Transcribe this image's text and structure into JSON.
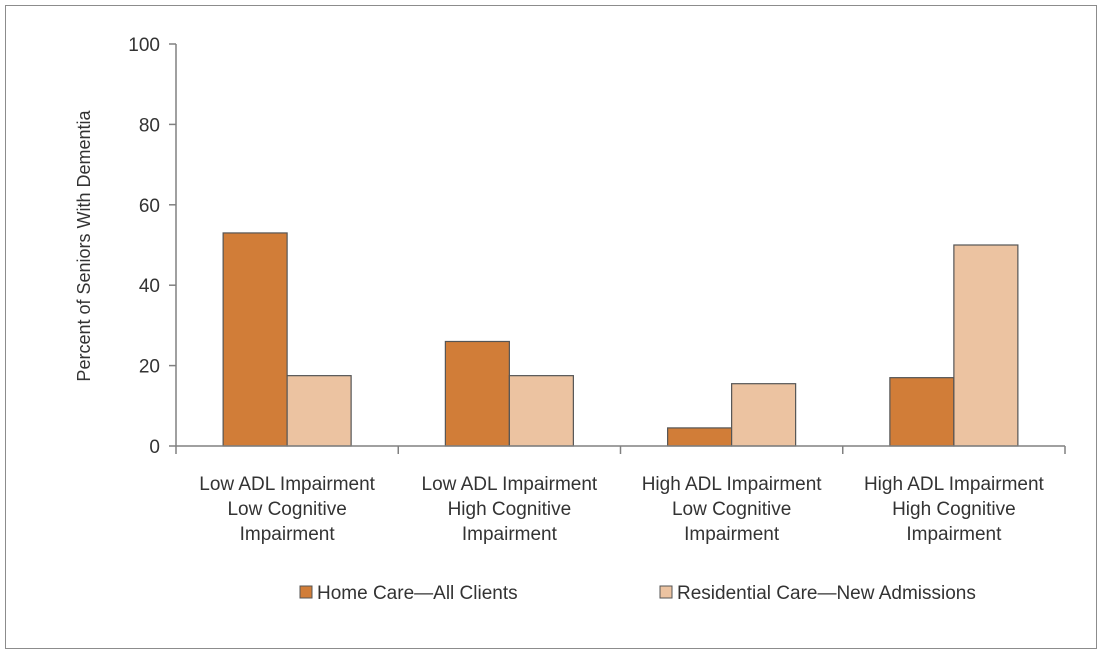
{
  "chart_data": {
    "type": "bar",
    "title": "",
    "xlabel": "",
    "ylabel": "Percent of Seniors With Dementia",
    "ylim": [
      0,
      100
    ],
    "yticks": [
      0,
      20,
      40,
      60,
      80,
      100
    ],
    "categories": [
      [
        "Low ADL Impairment",
        "Low Cognitive",
        "Impairment"
      ],
      [
        "Low ADL Impairment",
        "High Cognitive",
        "Impairment"
      ],
      [
        "High ADL Impairment",
        "Low Cognitive",
        "Impairment"
      ],
      [
        "High ADL Impairment",
        "High Cognitive",
        "Impairment"
      ]
    ],
    "series": [
      {
        "name": "Home Care—All Clients",
        "color": "#d17d38",
        "values": [
          53,
          26,
          4.5,
          17
        ]
      },
      {
        "name": "Residential Care—New Admissions",
        "color": "#ecc3a1",
        "values": [
          17.5,
          17.5,
          15.5,
          50
        ]
      }
    ],
    "grid": false,
    "legend_position": "bottom"
  }
}
